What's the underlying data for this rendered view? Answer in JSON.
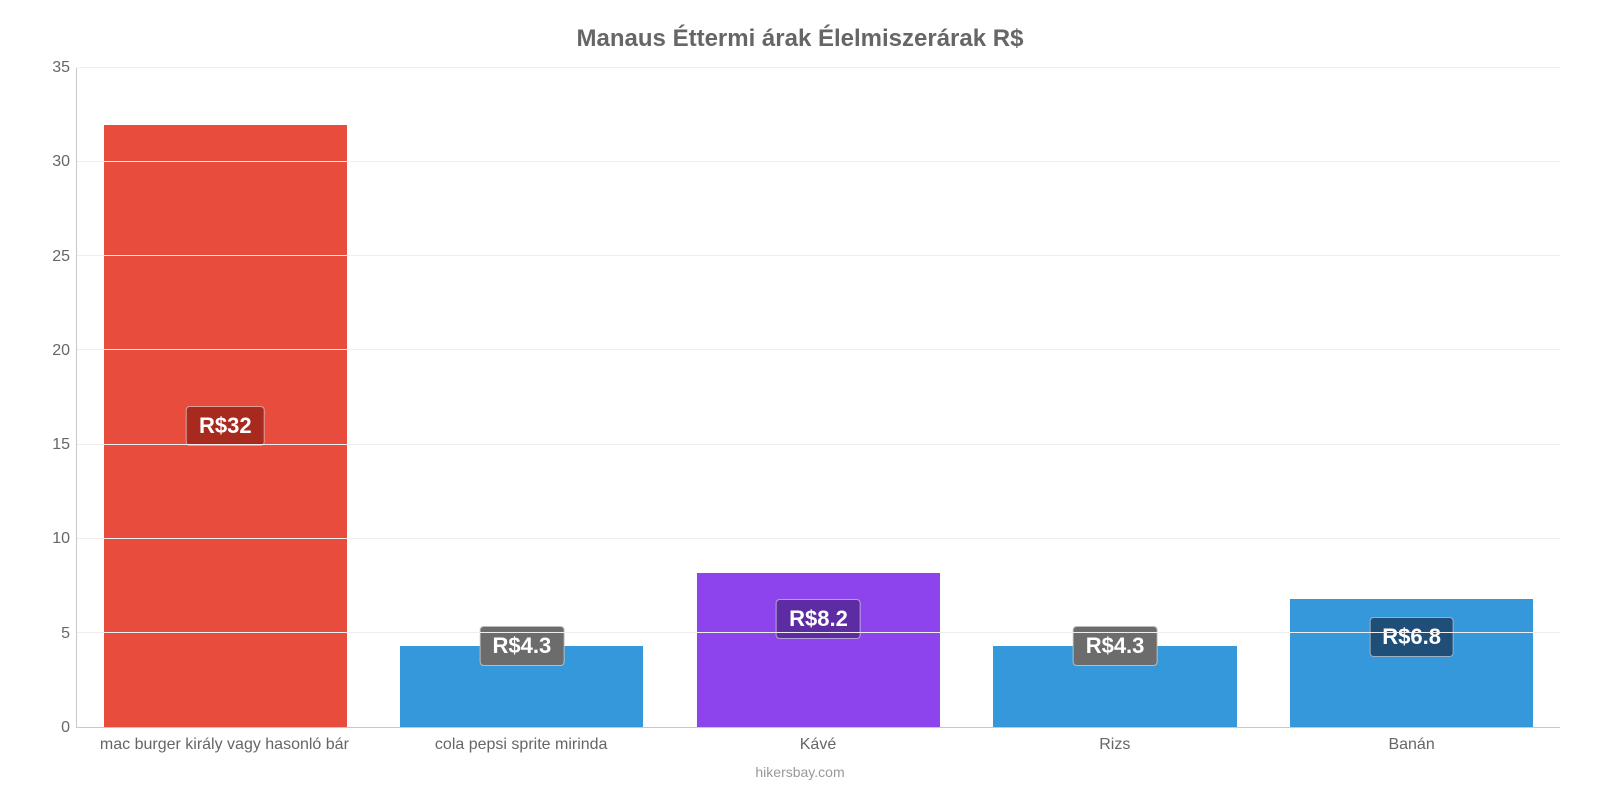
{
  "chart": {
    "type": "bar",
    "title": "Manaus Éttermi árak Élelmiszerárak R$",
    "title_fontsize": 24,
    "title_color": "#666666",
    "background_color": "#ffffff",
    "grid_color": "#eeeeee",
    "axis_line_color": "#c8c8c8",
    "tick_color": "#666666",
    "tick_fontsize": 16,
    "credit": "hikersbay.com",
    "credit_color": "#999999",
    "y": {
      "min": 0,
      "max": 35,
      "tick_step": 5,
      "ticks": [
        0,
        5,
        10,
        15,
        20,
        25,
        30,
        35
      ]
    },
    "bar_width_pct": 82,
    "categories": [
      "mac burger király vagy hasonló bár",
      "cola pepsi sprite mirinda",
      "Kávé",
      "Rizs",
      "Banán"
    ],
    "bars": [
      {
        "value": 32,
        "label": "R$32",
        "color": "#e74c3c",
        "label_bg": "#a82a1f",
        "label_bottom_pct": 50
      },
      {
        "value": 4.3,
        "label": "R$4.3",
        "color": "#3498db",
        "label_bg": "#6c6c6c",
        "label_bottom_pct": 100
      },
      {
        "value": 8.2,
        "label": "R$8.2",
        "color": "#8e44ec",
        "label_bg": "#5d2ca3",
        "label_bottom_pct": 70
      },
      {
        "value": 4.3,
        "label": "R$4.3",
        "color": "#3498db",
        "label_bg": "#6c6c6c",
        "label_bottom_pct": 100
      },
      {
        "value": 6.8,
        "label": "R$6.8",
        "color": "#3498db",
        "label_bg": "#1f4e79",
        "label_bottom_pct": 70
      }
    ]
  }
}
